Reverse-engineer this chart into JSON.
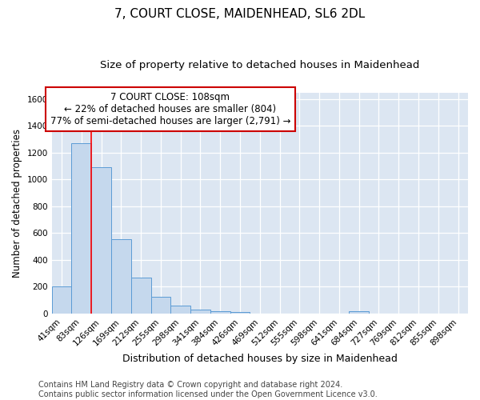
{
  "title": "7, COURT CLOSE, MAIDENHEAD, SL6 2DL",
  "subtitle": "Size of property relative to detached houses in Maidenhead",
  "xlabel": "Distribution of detached houses by size in Maidenhead",
  "ylabel": "Number of detached properties",
  "categories": [
    "41sqm",
    "83sqm",
    "126sqm",
    "169sqm",
    "212sqm",
    "255sqm",
    "298sqm",
    "341sqm",
    "384sqm",
    "426sqm",
    "469sqm",
    "512sqm",
    "555sqm",
    "598sqm",
    "641sqm",
    "684sqm",
    "727sqm",
    "769sqm",
    "812sqm",
    "855sqm",
    "898sqm"
  ],
  "values": [
    200,
    1270,
    1095,
    555,
    270,
    125,
    60,
    30,
    20,
    12,
    0,
    0,
    0,
    0,
    0,
    20,
    0,
    0,
    0,
    0,
    0
  ],
  "bar_color": "#c5d8ed",
  "bar_edge_color": "#5b9bd5",
  "red_line_x": 2.0,
  "annotation_text": "7 COURT CLOSE: 108sqm\n← 22% of detached houses are smaller (804)\n77% of semi-detached houses are larger (2,791) →",
  "annotation_box_color": "#ffffff",
  "annotation_box_edge": "#cc0000",
  "ylim": [
    0,
    1650
  ],
  "yticks": [
    0,
    200,
    400,
    600,
    800,
    1000,
    1200,
    1400,
    1600
  ],
  "footer": "Contains HM Land Registry data © Crown copyright and database right 2024.\nContains public sector information licensed under the Open Government Licence v3.0.",
  "fig_bg_color": "#ffffff",
  "plot_bg": "#dce6f2",
  "title_fontsize": 11,
  "subtitle_fontsize": 9.5,
  "xlabel_fontsize": 9,
  "ylabel_fontsize": 8.5,
  "tick_fontsize": 7.5,
  "footer_fontsize": 7,
  "annot_fontsize": 8.5
}
